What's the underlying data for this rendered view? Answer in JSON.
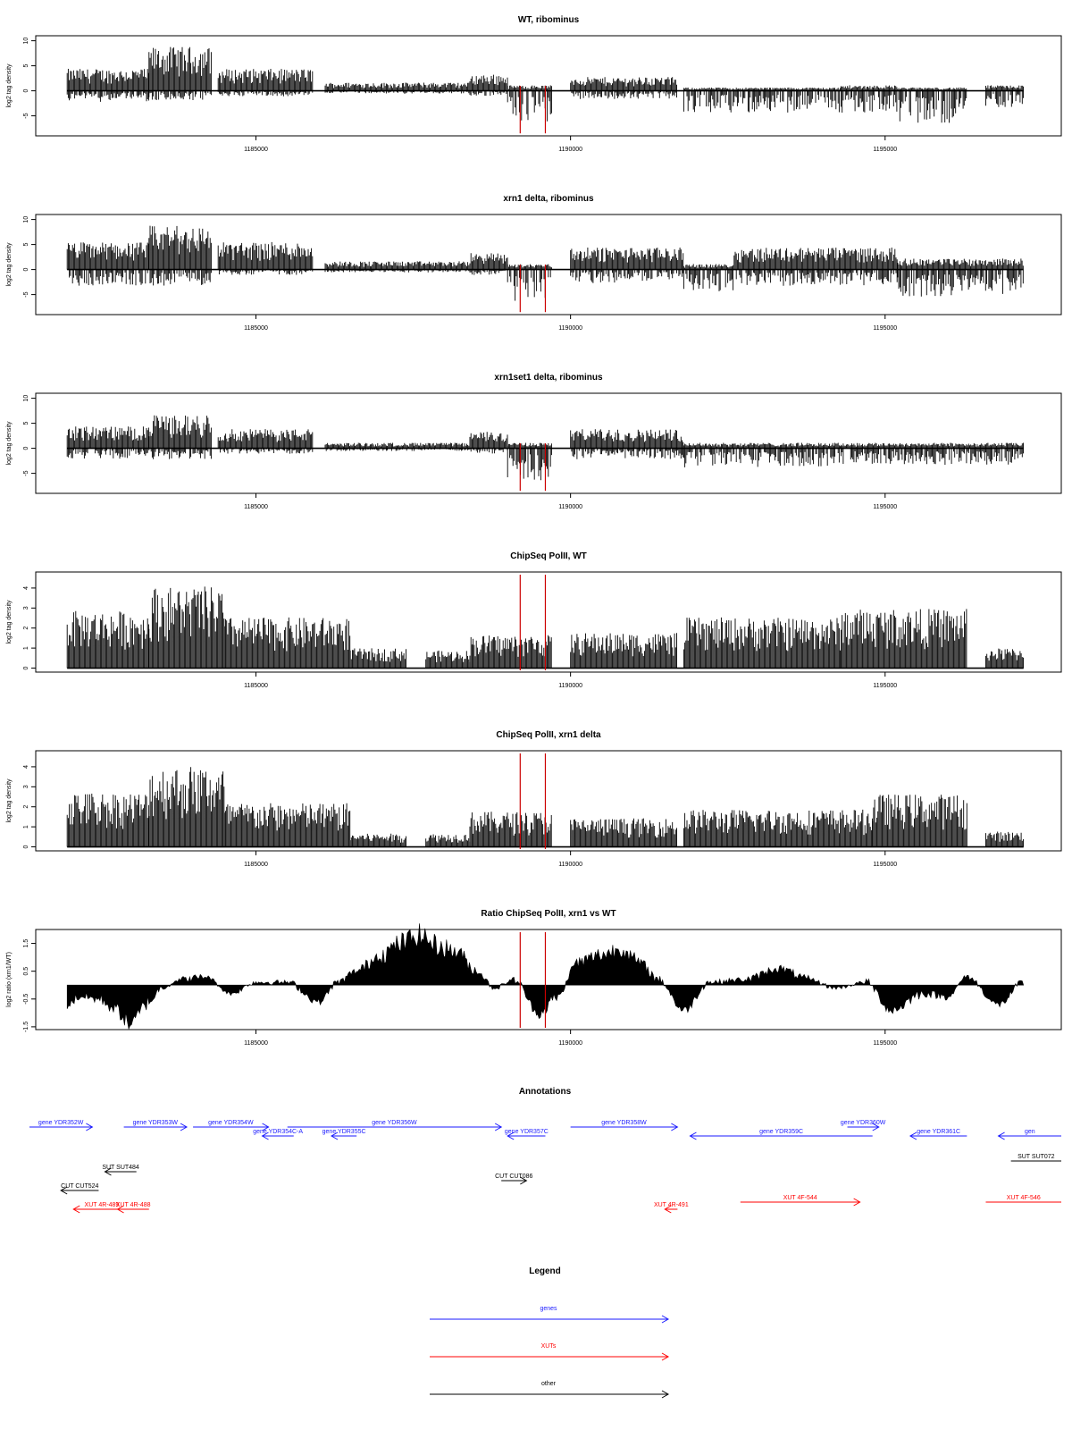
{
  "colors": {
    "signal": "#000000",
    "highlight": "#cc0000",
    "genes": "#1a1aff",
    "xuts": "#ff0000",
    "other": "#000000"
  },
  "chart_data": [
    {
      "type": "bar",
      "title": "WT, ribominus",
      "ylabel": "log2 tag density",
      "xlim": [
        1181500,
        1197800
      ],
      "ylim": [
        -9,
        11
      ],
      "yticks": [
        "10",
        "5",
        "0",
        "-5"
      ],
      "ytick_values": [
        10,
        5,
        0,
        -5
      ],
      "xticks": [
        "1185000",
        "1190000",
        "1195000"
      ],
      "xtick_values": [
        1185000,
        1190000,
        1195000
      ],
      "highlight_x": [
        1189200,
        1189600
      ],
      "series": [
        {
          "values": [
            {
              "x0": 1182000,
              "x1": 1183300,
              "pos": 4,
              "neg": 2
            },
            {
              "x0": 1183300,
              "x1": 1184300,
              "pos": 8,
              "neg": 2
            },
            {
              "x0": 1184400,
              "x1": 1185900,
              "pos": 4,
              "neg": 1
            },
            {
              "x0": 1186100,
              "x1": 1188400,
              "pos": 1.5,
              "neg": 0.5
            },
            {
              "x0": 1188400,
              "x1": 1189000,
              "pos": 3,
              "neg": 1
            },
            {
              "x0": 1189000,
              "x1": 1189700,
              "pos": 1,
              "neg": 6
            },
            {
              "x0": 1190000,
              "x1": 1191700,
              "pos": 2.5,
              "neg": 1.5
            },
            {
              "x0": 1191800,
              "x1": 1194300,
              "pos": 0.6,
              "neg": 4
            },
            {
              "x0": 1194300,
              "x1": 1195200,
              "pos": 1,
              "neg": 4
            },
            {
              "x0": 1195200,
              "x1": 1196300,
              "pos": 0.6,
              "neg": 6
            },
            {
              "x0": 1196600,
              "x1": 1197200,
              "pos": 1,
              "neg": 3
            }
          ]
        }
      ]
    },
    {
      "type": "bar",
      "title": "xrn1 delta, ribominus",
      "ylabel": "log2 tag density",
      "xlim": [
        1181500,
        1197800
      ],
      "ylim": [
        -9,
        11
      ],
      "yticks": [
        "10",
        "5",
        "0",
        "-5"
      ],
      "ytick_values": [
        10,
        5,
        0,
        -5
      ],
      "xticks": [
        "1185000",
        "1190000",
        "1195000"
      ],
      "xtick_values": [
        1185000,
        1190000,
        1195000
      ],
      "highlight_x": [
        1189200,
        1189600
      ],
      "series": [
        {
          "values": [
            {
              "x0": 1182000,
              "x1": 1183300,
              "pos": 5,
              "neg": 3
            },
            {
              "x0": 1183300,
              "x1": 1184300,
              "pos": 8,
              "neg": 3
            },
            {
              "x0": 1184400,
              "x1": 1185900,
              "pos": 5,
              "neg": 1
            },
            {
              "x0": 1186100,
              "x1": 1188400,
              "pos": 1.5,
              "neg": 0.5
            },
            {
              "x0": 1188400,
              "x1": 1189000,
              "pos": 3,
              "neg": 1
            },
            {
              "x0": 1189000,
              "x1": 1189700,
              "pos": 1,
              "neg": 6
            },
            {
              "x0": 1190000,
              "x1": 1191800,
              "pos": 4,
              "neg": 2.5
            },
            {
              "x0": 1191800,
              "x1": 1192600,
              "pos": 1,
              "neg": 4
            },
            {
              "x0": 1192600,
              "x1": 1195200,
              "pos": 4,
              "neg": 3
            },
            {
              "x0": 1195200,
              "x1": 1197200,
              "pos": 2,
              "neg": 5
            }
          ]
        }
      ]
    },
    {
      "type": "bar",
      "title": "xrn1set1 delta, ribominus",
      "ylabel": "log2 tag density",
      "xlim": [
        1181500,
        1197800
      ],
      "ylim": [
        -9,
        11
      ],
      "yticks": [
        "10",
        "5",
        "0",
        "-5"
      ],
      "ytick_values": [
        10,
        5,
        0,
        -5
      ],
      "xticks": [
        "1185000",
        "1190000",
        "1195000"
      ],
      "xtick_values": [
        1185000,
        1190000,
        1195000
      ],
      "highlight_x": [
        1189200,
        1189600
      ],
      "series": [
        {
          "values": [
            {
              "x0": 1182000,
              "x1": 1183300,
              "pos": 4,
              "neg": 2
            },
            {
              "x0": 1183300,
              "x1": 1184300,
              "pos": 6,
              "neg": 2
            },
            {
              "x0": 1184400,
              "x1": 1185900,
              "pos": 3.5,
              "neg": 1
            },
            {
              "x0": 1186100,
              "x1": 1188400,
              "pos": 1,
              "neg": 0.5
            },
            {
              "x0": 1188400,
              "x1": 1189000,
              "pos": 3,
              "neg": 1
            },
            {
              "x0": 1189000,
              "x1": 1189700,
              "pos": 1,
              "neg": 6
            },
            {
              "x0": 1190000,
              "x1": 1191800,
              "pos": 3.5,
              "neg": 2
            },
            {
              "x0": 1191800,
              "x1": 1194300,
              "pos": 1,
              "neg": 3.5
            },
            {
              "x0": 1194300,
              "x1": 1197200,
              "pos": 1,
              "neg": 3
            }
          ]
        }
      ]
    },
    {
      "type": "bar",
      "title": "ChipSeq PolII, WT",
      "ylabel": "log2 tag density",
      "xlim": [
        1181500,
        1197800
      ],
      "ylim": [
        -0.2,
        4.8
      ],
      "yticks": [
        "4",
        "3",
        "2",
        "1",
        "0"
      ],
      "ytick_values": [
        4,
        3,
        2,
        1,
        0
      ],
      "xticks": [
        "1185000",
        "1190000",
        "1195000"
      ],
      "xtick_values": [
        1185000,
        1190000,
        1195000
      ],
      "highlight_x": [
        1189200,
        1189600
      ],
      "series": [
        {
          "values": [
            {
              "x0": 1182000,
              "x1": 1183300,
              "pos": 2.6,
              "neg": 0
            },
            {
              "x0": 1183300,
              "x1": 1184500,
              "pos": 3.7,
              "neg": 0
            },
            {
              "x0": 1184500,
              "x1": 1186500,
              "pos": 2.3,
              "neg": 0
            },
            {
              "x0": 1186500,
              "x1": 1187400,
              "pos": 0.9,
              "neg": 0
            },
            {
              "x0": 1187700,
              "x1": 1188400,
              "pos": 0.8,
              "neg": 0
            },
            {
              "x0": 1188400,
              "x1": 1189700,
              "pos": 1.5,
              "neg": 0
            },
            {
              "x0": 1190000,
              "x1": 1191700,
              "pos": 1.6,
              "neg": 0
            },
            {
              "x0": 1191800,
              "x1": 1194300,
              "pos": 2.3,
              "neg": 0
            },
            {
              "x0": 1194300,
              "x1": 1196300,
              "pos": 2.7,
              "neg": 0
            },
            {
              "x0": 1196600,
              "x1": 1197200,
              "pos": 0.9,
              "neg": 0
            }
          ]
        }
      ]
    },
    {
      "type": "bar",
      "title": "ChipSeq PolII, xrn1 delta",
      "ylabel": "log2 tag density",
      "xlim": [
        1181500,
        1197800
      ],
      "ylim": [
        -0.2,
        4.8
      ],
      "yticks": [
        "4",
        "3",
        "2",
        "1",
        "0"
      ],
      "ytick_values": [
        4,
        3,
        2,
        1,
        0
      ],
      "xticks": [
        "1185000",
        "1190000",
        "1195000"
      ],
      "xtick_values": [
        1185000,
        1190000,
        1195000
      ],
      "highlight_x": [
        1189200,
        1189600
      ],
      "series": [
        {
          "values": [
            {
              "x0": 1182000,
              "x1": 1183300,
              "pos": 2.5,
              "neg": 0
            },
            {
              "x0": 1183300,
              "x1": 1184500,
              "pos": 3.7,
              "neg": 0
            },
            {
              "x0": 1184500,
              "x1": 1186500,
              "pos": 2.0,
              "neg": 0
            },
            {
              "x0": 1186500,
              "x1": 1187400,
              "pos": 0.6,
              "neg": 0
            },
            {
              "x0": 1187700,
              "x1": 1188400,
              "pos": 0.6,
              "neg": 0
            },
            {
              "x0": 1188400,
              "x1": 1189700,
              "pos": 1.6,
              "neg": 0
            },
            {
              "x0": 1190000,
              "x1": 1191700,
              "pos": 1.3,
              "neg": 0
            },
            {
              "x0": 1191800,
              "x1": 1194800,
              "pos": 1.7,
              "neg": 0
            },
            {
              "x0": 1194800,
              "x1": 1196300,
              "pos": 2.4,
              "neg": 0
            },
            {
              "x0": 1196600,
              "x1": 1197200,
              "pos": 0.7,
              "neg": 0
            }
          ]
        }
      ]
    },
    {
      "type": "area",
      "title": "Ratio ChipSeq PolII, xrn1 vs WT",
      "ylabel": "log2 ratio (xrn1/WT)",
      "xlim": [
        1181500,
        1197800
      ],
      "ylim": [
        -1.6,
        2.0
      ],
      "yticks": [
        "1.5",
        "0.5",
        "-0.5",
        "-1.5"
      ],
      "ytick_values": [
        1.5,
        0.5,
        -0.5,
        -1.5
      ],
      "xticks": [
        "1185000",
        "1190000",
        "1195000"
      ],
      "xtick_values": [
        1185000,
        1190000,
        1195000
      ],
      "highlight_x": [
        1189200,
        1189600
      ],
      "series": [
        {
          "x": [
            1182000,
            1182200,
            1182500,
            1182800,
            1183000,
            1183300,
            1183500,
            1183800,
            1184200,
            1184600,
            1185000,
            1185500,
            1186000,
            1186300,
            1186600,
            1187000,
            1187300,
            1187600,
            1187900,
            1188200,
            1188500,
            1188800,
            1189100,
            1189500,
            1189800,
            1190100,
            1190500,
            1190800,
            1191100,
            1191400,
            1191800,
            1192200,
            1192800,
            1193300,
            1193800,
            1194200,
            1194700,
            1195100,
            1195600,
            1196000,
            1196300,
            1196800,
            1197200
          ],
          "y": [
            -0.7,
            -0.4,
            -0.5,
            -0.9,
            -1.4,
            -0.6,
            -0.1,
            0.2,
            0.3,
            -0.3,
            0.1,
            0.1,
            -0.6,
            0.1,
            0.5,
            1.1,
            1.5,
            1.8,
            1.4,
            1.2,
            0.5,
            -0.1,
            0.2,
            -1.0,
            -0.4,
            0.8,
            1.1,
            1.3,
            0.8,
            0.2,
            -0.9,
            0.1,
            0.2,
            0.6,
            0.2,
            -0.1,
            0.1,
            -0.9,
            -0.3,
            -0.4,
            0.3,
            -0.7,
            0.1
          ]
        }
      ]
    }
  ],
  "annotations": {
    "title": "Annotations",
    "genes": [
      {
        "label": "gene YDR352W",
        "x0": 1181400,
        "x1": 1182400,
        "row": 0,
        "dir": "right"
      },
      {
        "label": "gene YDR353W",
        "x0": 1182900,
        "x1": 1183900,
        "row": 0,
        "dir": "right"
      },
      {
        "label": "gene YDR354W",
        "x0": 1184000,
        "x1": 1185200,
        "row": 0,
        "dir": "right"
      },
      {
        "label": "gene YDR354C-A",
        "x0": 1185100,
        "x1": 1185600,
        "row": 1,
        "dir": "left"
      },
      {
        "label": "gene YDR355C",
        "x0": 1186200,
        "x1": 1186600,
        "row": 1,
        "dir": "left"
      },
      {
        "label": "gene YDR356W",
        "x0": 1185500,
        "x1": 1188900,
        "row": 0,
        "dir": "right"
      },
      {
        "label": "gene YDR357C",
        "x0": 1189000,
        "x1": 1189600,
        "row": 1,
        "dir": "left"
      },
      {
        "label": "gene YDR358W",
        "x0": 1190000,
        "x1": 1191700,
        "row": 0,
        "dir": "right"
      },
      {
        "label": "gene YDR359C",
        "x0": 1191900,
        "x1": 1194800,
        "row": 2,
        "dir": "left"
      },
      {
        "label": "gene YDR360W",
        "x0": 1194400,
        "x1": 1194900,
        "row": 0,
        "dir": "right"
      },
      {
        "label": "gene YDR361C",
        "x0": 1195400,
        "x1": 1196300,
        "row": 1,
        "dir": "left"
      },
      {
        "label": "gen",
        "x0": 1196800,
        "x1": 1197800,
        "row": 1,
        "dir": "left"
      }
    ],
    "others": [
      {
        "label": "SUT SUT484",
        "x0": 1182600,
        "x1": 1183100,
        "row": 0,
        "dir": "left"
      },
      {
        "label": "CUT CUT524",
        "x0": 1181900,
        "x1": 1182500,
        "row": 1,
        "dir": "left"
      },
      {
        "label": "CUT CUT086",
        "x0": 1188900,
        "x1": 1189300,
        "row": 0,
        "dir": "right"
      },
      {
        "label": "SUT SUT072",
        "x0": 1197000,
        "x1": 1197800,
        "row": -1,
        "dir": "none"
      }
    ],
    "xuts": [
      {
        "label": "XUT 4R-489",
        "x0": 1182100,
        "x1": 1183000,
        "row": 0,
        "dir": "left"
      },
      {
        "label": "XUT 4R-488",
        "x0": 1182800,
        "x1": 1183300,
        "row": 0,
        "dir": "left"
      },
      {
        "label": "XUT 4R-491",
        "x0": 1191500,
        "x1": 1191700,
        "row": 0,
        "dir": "left"
      },
      {
        "label": "XUT 4F-544",
        "x0": 1192700,
        "x1": 1194600,
        "row": -1,
        "dir": "right"
      },
      {
        "label": "XUT 4F-546",
        "x0": 1196600,
        "x1": 1197800,
        "row": -1,
        "dir": "none"
      }
    ]
  },
  "legend": {
    "title": "Legend",
    "items": [
      {
        "label": "genes",
        "color": "#1a1aff"
      },
      {
        "label": "XUTs",
        "color": "#ff0000"
      },
      {
        "label": "other",
        "color": "#000000"
      }
    ]
  }
}
